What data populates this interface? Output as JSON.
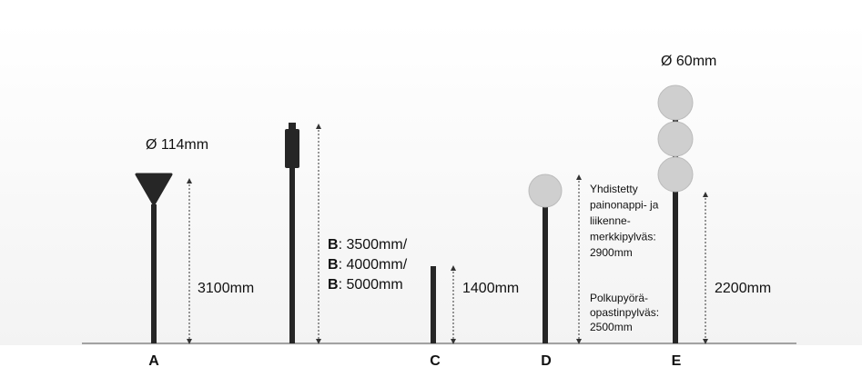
{
  "poles": [
    {
      "label": "A",
      "top": "Ø 114mm",
      "height": "3100mm"
    },
    {
      "heights": [
        {
          "bold": "B",
          "text": ": 3500mm/"
        },
        {
          "bold": "B",
          "text": ": 4000mm/"
        },
        {
          "bold": "B",
          "text": ": 5000mm"
        }
      ]
    },
    {
      "label": "C",
      "height": "1400mm"
    },
    {
      "label": "D",
      "notes": [
        [
          "Yhdistetty",
          "painonappi- ja",
          "liikenne-",
          "merkkipylväs:",
          "2900mm"
        ],
        [
          "Polkupyörä-",
          "opastinpylväs:",
          "2500mm"
        ]
      ]
    },
    {
      "label": "E",
      "top": "Ø 60mm",
      "height": "2200mm"
    }
  ]
}
